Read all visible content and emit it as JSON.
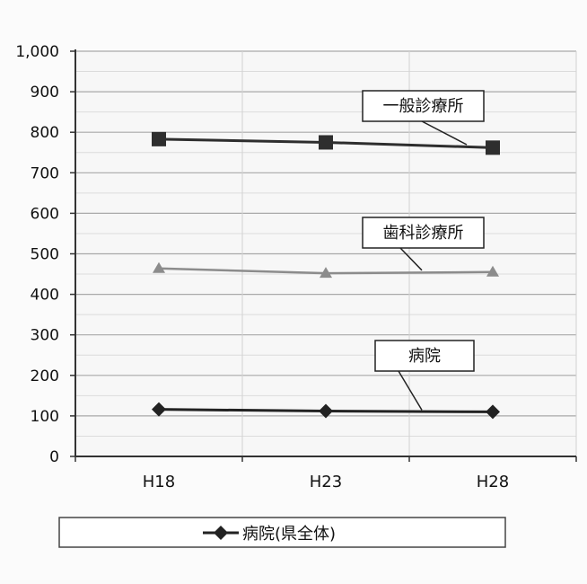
{
  "chart_data": {
    "type": "line",
    "categories": [
      "H18",
      "H23",
      "H28"
    ],
    "ylim": [
      0,
      1000
    ],
    "yticks": [
      0,
      100,
      200,
      300,
      400,
      500,
      600,
      700,
      800,
      900,
      1000
    ],
    "ytick_labels": [
      "0",
      "100",
      "200",
      "300",
      "400",
      "500",
      "600",
      "700",
      "800",
      "900",
      "1,000"
    ],
    "grid": true,
    "legend_position": "bottom",
    "series": [
      {
        "name": "一般診療所",
        "values": [
          783,
          775,
          762
        ],
        "color": "#2e2e2e",
        "marker": "square"
      },
      {
        "name": "歯科診療所",
        "values": [
          464,
          452,
          455
        ],
        "color": "#8c8c8c",
        "marker": "triangle"
      },
      {
        "name": "病院",
        "values": [
          116,
          112,
          110
        ],
        "color": "#222222",
        "marker": "diamond"
      }
    ],
    "legend": {
      "label": "病院(県全体)",
      "marker": "diamond",
      "color": "#222222"
    }
  }
}
